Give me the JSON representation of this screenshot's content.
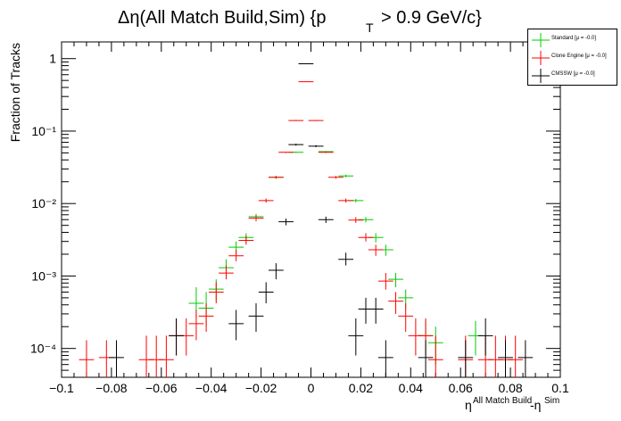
{
  "chart_data": {
    "type": "scatter",
    "title_parts": [
      "Δη(All Match Build,Sim) {p",
      "T",
      "> 0.9 GeV/c}"
    ],
    "ylabel": "Fraction of Tracks",
    "xlabel_parts": [
      "η",
      "All Match Build",
      "-η",
      "Sim"
    ],
    "xlim": [
      -0.1,
      0.1
    ],
    "ylim": [
      4e-05,
      1.7
    ],
    "log_y": true,
    "bin_width": 0.006,
    "x_ticks": [
      "−0.1",
      "−0.08",
      "−0.06",
      "−0.04",
      "−0.02",
      "0",
      "0.02",
      "0.04",
      "0.06",
      "0.08",
      "0.1"
    ],
    "x_tick_values": [
      -0.1,
      -0.08,
      -0.06,
      -0.04,
      -0.02,
      0,
      0.02,
      0.04,
      0.06,
      0.08,
      0.1
    ],
    "y_ticks": [
      "10⁻⁴",
      "10⁻³",
      "10⁻²",
      "10⁻¹",
      "1"
    ],
    "y_tick_values": [
      0.0001,
      0.001,
      0.01,
      0.1,
      1
    ],
    "legend_position": "top-right",
    "series": [
      {
        "name": "Standard  [μ = -0.0]",
        "color": "#00cc00",
        "points": [
          [
            -0.046,
            0.00042,
            0.00026,
            0.0007
          ],
          [
            -0.042,
            0.00036,
            0.00021,
            0.0006
          ],
          [
            -0.038,
            0.00066,
            0.00046,
            0.0009
          ],
          [
            -0.034,
            0.0013,
            0.001,
            0.0017
          ],
          [
            -0.03,
            0.0025,
            0.002,
            0.003
          ],
          [
            -0.026,
            0.0034,
            0.0029,
            0.0039
          ],
          [
            -0.022,
            0.0066,
            0.006,
            0.0072
          ],
          [
            -0.014,
            0.023,
            0.022,
            0.024
          ],
          [
            -0.006,
            0.051,
            0.05,
            0.052
          ],
          [
            0.006,
            0.052,
            0.051,
            0.053
          ],
          [
            0.014,
            0.024,
            0.023,
            0.025
          ],
          [
            0.018,
            0.011,
            0.0104,
            0.0116
          ],
          [
            0.022,
            0.006,
            0.0055,
            0.0065
          ],
          [
            0.026,
            0.0034,
            0.0029,
            0.0039
          ],
          [
            0.03,
            0.0023,
            0.0019,
            0.0027
          ],
          [
            0.034,
            0.0009,
            0.0007,
            0.0011
          ],
          [
            0.038,
            0.0005,
            0.00035,
            0.00065
          ],
          [
            0.046,
            0.00015,
            8e-05,
            0.00024
          ],
          [
            0.05,
            0.00012,
            6e-05,
            0.0002
          ],
          [
            0.066,
            0.00015,
            8e-05,
            0.00024
          ]
        ]
      },
      {
        "name": "Clone Engine  [μ = -0.0]",
        "color": "#ff0000",
        "points": [
          [
            -0.09,
            7e-05,
            4e-05,
            0.00013
          ],
          [
            -0.082,
            7.5e-05,
            4e-05,
            0.00013
          ],
          [
            -0.066,
            7e-05,
            4e-05,
            0.00015
          ],
          [
            -0.062,
            7e-05,
            4e-05,
            0.00015
          ],
          [
            -0.058,
            7e-05,
            4e-05,
            0.00015
          ],
          [
            -0.054,
            0.00015,
            8e-05,
            0.00026
          ],
          [
            -0.05,
            0.00015,
            8e-05,
            0.00026
          ],
          [
            -0.046,
            0.00022,
            0.00013,
            0.00034
          ],
          [
            -0.042,
            0.00028,
            0.00017,
            0.00042
          ],
          [
            -0.038,
            0.0006,
            0.00042,
            0.00082
          ],
          [
            -0.034,
            0.0011,
            0.0009,
            0.0014
          ],
          [
            -0.03,
            0.0019,
            0.0016,
            0.0023
          ],
          [
            -0.026,
            0.0031,
            0.0027,
            0.0036
          ],
          [
            -0.022,
            0.0063,
            0.0057,
            0.0069
          ],
          [
            -0.018,
            0.011,
            0.0103,
            0.0117
          ],
          [
            -0.014,
            0.023,
            0.022,
            0.024
          ],
          [
            -0.01,
            0.051,
            0.05,
            0.052
          ],
          [
            -0.006,
            0.14,
            0.138,
            0.142
          ],
          [
            -0.002,
            0.48,
            0.475,
            0.485
          ],
          [
            0.002,
            0.14,
            0.138,
            0.142
          ],
          [
            0.006,
            0.051,
            0.05,
            0.052
          ],
          [
            0.01,
            0.023,
            0.022,
            0.024
          ],
          [
            0.014,
            0.011,
            0.0103,
            0.0117
          ],
          [
            0.018,
            0.0059,
            0.0054,
            0.0065
          ],
          [
            0.022,
            0.0034,
            0.003,
            0.0039
          ],
          [
            0.026,
            0.0023,
            0.0019,
            0.0027
          ],
          [
            0.03,
            0.00085,
            0.00065,
            0.0011
          ],
          [
            0.034,
            0.00045,
            0.0003,
            0.0006
          ],
          [
            0.038,
            0.00028,
            0.00017,
            0.00042
          ],
          [
            0.042,
            0.00015,
            8e-05,
            0.00026
          ],
          [
            0.046,
            0.00015,
            8e-05,
            0.00026
          ],
          [
            0.05,
            7e-05,
            4e-05,
            0.00015
          ],
          [
            0.062,
            7e-05,
            4e-05,
            0.00015
          ],
          [
            0.07,
            7e-05,
            4e-05,
            0.00015
          ],
          [
            0.074,
            7e-05,
            4e-05,
            0.00015
          ],
          [
            0.078,
            7e-05,
            4e-05,
            0.00015
          ],
          [
            0.082,
            7e-05,
            4e-05,
            0.00015
          ]
        ]
      },
      {
        "name": "CMSSW  [μ = -0.0]",
        "color": "#000000",
        "points": [
          [
            -0.078,
            7.5e-05,
            4e-05,
            0.00013
          ],
          [
            -0.054,
            0.00015,
            8e-05,
            0.00026
          ],
          [
            -0.03,
            0.00022,
            0.00013,
            0.00034
          ],
          [
            -0.022,
            0.00028,
            0.00017,
            0.00042
          ],
          [
            -0.018,
            0.0006,
            0.00042,
            0.00082
          ],
          [
            -0.014,
            0.0012,
            0.0009,
            0.0015
          ],
          [
            -0.01,
            0.0056,
            0.005,
            0.0062
          ],
          [
            -0.006,
            0.065,
            0.063,
            0.067
          ],
          [
            -0.002,
            0.85,
            0.84,
            0.86
          ],
          [
            0.002,
            0.062,
            0.06,
            0.064
          ],
          [
            0.006,
            0.006,
            0.0054,
            0.0066
          ],
          [
            0.014,
            0.0017,
            0.0014,
            0.0021
          ],
          [
            0.018,
            0.00015,
            8e-05,
            0.00026
          ],
          [
            0.022,
            0.00035,
            0.00022,
            0.0005
          ],
          [
            0.026,
            0.00035,
            0.00022,
            0.0005
          ],
          [
            0.03,
            7.5e-05,
            4e-05,
            0.00013
          ],
          [
            0.046,
            7.5e-05,
            4e-05,
            0.00013
          ],
          [
            0.062,
            7.5e-05,
            4e-05,
            0.00013
          ],
          [
            0.07,
            0.00015,
            8e-05,
            0.00026
          ],
          [
            0.078,
            7.5e-05,
            4e-05,
            0.00013
          ],
          [
            0.086,
            7.5e-05,
            4e-05,
            0.00013
          ]
        ]
      }
    ]
  }
}
